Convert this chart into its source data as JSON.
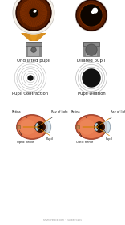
{
  "bg_color": "#ffffff",
  "undilated_label": "Undilated pupil",
  "dilated_label": "Dilated pupil",
  "contraction_label": "Pupil Contraction",
  "dilation_label": "Pupil Dilation",
  "retina_label": "Retina",
  "ray_label": "Ray of light",
  "optic_label": "Optic nerve",
  "pupil_label": "Pupil",
  "iris_brown": "#7B2D00",
  "iris_mid": "#5A1E00",
  "iris_dark": "#2A0800",
  "pupil_black": "#0d0500",
  "cone_color": "#D4830A",
  "cone_light": "#F0A020",
  "cyl_body": "#aaaaaa",
  "cyl_top": "#888888",
  "cyl_dark": "#666666",
  "cyl_pupil_small": "#707070",
  "cyl_pupil_large": "#606060",
  "ring_color": "#bbbbbb",
  "anatomy_retina": "#e87a50",
  "anatomy_outer": "#b85030",
  "anatomy_sclera": "#f0c090",
  "anatomy_cornea": "#c8dde8",
  "anatomy_nerve": "#c08050",
  "ray_color": "#d08000",
  "shutterstock_text": "shutterstock.com · 2498807425"
}
